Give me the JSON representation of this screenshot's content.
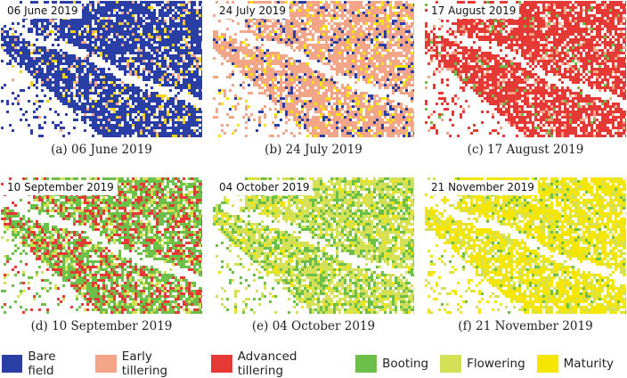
{
  "panels": [
    {
      "date": "06 June 2019",
      "caption": "(a)  06 June 2019",
      "mix": [
        [
          "#2a3fa6",
          0.86
        ],
        [
          "#f4d21a",
          0.08
        ],
        [
          "#f2a687",
          0.06
        ]
      ]
    },
    {
      "date": "24 July 2019",
      "caption": "(b)  24 July 2019",
      "mix": [
        [
          "#f2a687",
          0.78
        ],
        [
          "#2a3fa6",
          0.12
        ],
        [
          "#f4e600",
          0.1
        ]
      ]
    },
    {
      "date": "17 August 2019",
      "caption": "(c)  17 August 2019",
      "mix": [
        [
          "#e53935",
          0.86
        ],
        [
          "#f2a687",
          0.09
        ],
        [
          "#6cc04a",
          0.05
        ]
      ]
    },
    {
      "date": "10 September 2019",
      "caption": "(d)  10 September 2019",
      "mix": [
        [
          "#6cc04a",
          0.55
        ],
        [
          "#e53935",
          0.3
        ],
        [
          "#d4e157",
          0.15
        ]
      ]
    },
    {
      "date": "04 October 2019",
      "caption": "(e)  04 October 2019",
      "mix": [
        [
          "#d4e157",
          0.6
        ],
        [
          "#6cc04a",
          0.32
        ],
        [
          "#f4e600",
          0.08
        ]
      ]
    },
    {
      "date": "21 November 2019",
      "caption": "(f)  21 November 2019",
      "mix": [
        [
          "#f4e600",
          0.72
        ],
        [
          "#d4e157",
          0.22
        ],
        [
          "#6cc04a",
          0.06
        ]
      ]
    }
  ],
  "legend": [
    {
      "label": "Bare field",
      "color": "#2a3fa6"
    },
    {
      "label": "Early tillering",
      "color": "#f2a687"
    },
    {
      "label": "Advanced tillering",
      "color": "#e53935"
    },
    {
      "label": "Booting",
      "color": "#6cc04a"
    },
    {
      "label": "Flowering",
      "color": "#d4e157"
    },
    {
      "label": "Maturity",
      "color": "#f4e600"
    }
  ]
}
